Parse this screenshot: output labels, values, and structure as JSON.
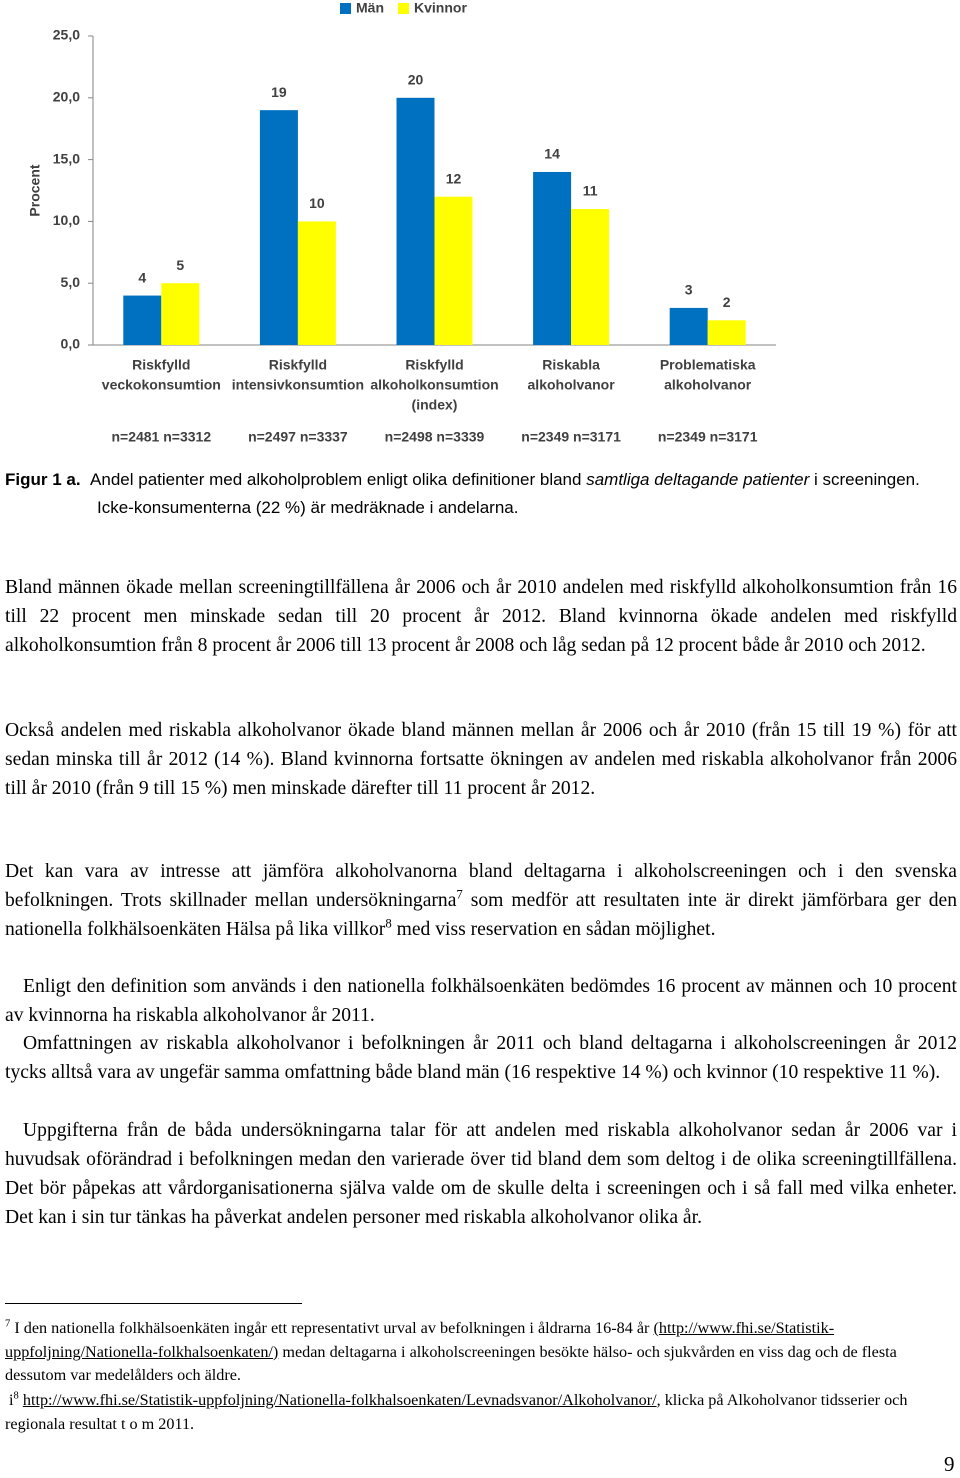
{
  "chart_data": {
    "type": "bar",
    "categories": [
      [
        "Riskfylld",
        "veckokonsumtion"
      ],
      [
        "Riskfylld",
        "intensivkonsumtion"
      ],
      [
        "Riskfylld",
        "alkoholkonsumtion",
        "(index)"
      ],
      [
        "Riskabla",
        "alkoholvanor"
      ],
      [
        "Problematiska",
        "alkoholvanor"
      ]
    ],
    "sample_sizes": [
      "n=2481 n=3312",
      "n=2497 n=3337",
      "n=2498 n=3339",
      "n=2349 n=3171",
      "n=2349 n=3171"
    ],
    "series": [
      {
        "name": "Män",
        "color": "#0070c0",
        "values": [
          4,
          19,
          20,
          14,
          3
        ]
      },
      {
        "name": "Kvinnor",
        "color": "#ffff00",
        "values": [
          5,
          10,
          12,
          11,
          2
        ]
      }
    ],
    "ylabel": "Procent",
    "ylim": [
      0,
      25
    ],
    "yticks": [
      {
        "value": 0,
        "label": "0,0"
      },
      {
        "value": 5,
        "label": "5,0"
      },
      {
        "value": 10,
        "label": "10,0"
      },
      {
        "value": 15,
        "label": "15,0"
      },
      {
        "value": 20,
        "label": "20,0"
      },
      {
        "value": 25,
        "label": "25,0"
      }
    ],
    "legend": "top",
    "grid": false
  },
  "caption": {
    "label": "Figur 1 a.",
    "text1": "Andel patienter med alkoholproblem enligt olika definitioner bland",
    "italic": "samtliga deltagande patienter",
    "text2": "i screeningen. Icke-konsumenterna (22 %) är medräknade i andelarna."
  },
  "paragraphs": [
    [
      "Bland männen ökade mellan screeningtillfällena år 2006 och år 2010 andelen med riskfylld alkoholkonsumtion från 16 till 22 procent men minskade sedan till 20 procent år 2012. Bland kvinnorna ökade andelen med riskfylld alkoholkonsumtion från 8 procent år 2006 till 13 procent år 2008 och låg sedan på 12 procent både år 2010 och 2012."
    ],
    [
      "Också andelen med riskabla alkoholvanor ökade bland männen mellan år 2006 och år 2010 (från 15 till 19 %) för att sedan minska till år 2012 (14 %). Bland kvinnorna fortsatte ökningen av andelen med riskabla alkoholvanor från 2006 till år 2010 (från 9 till 15 %) men minskade därefter till 11 procent år 2012."
    ],
    [
      "Det kan vara av intresse att jämföra alkoholvanorna bland deltagarna i alkoholscreeningen och i den svenska befolkningen. Trots skillnader mellan undersökningarna",
      "7",
      " som medför att resultaten inte är direkt jämförbara ger den nationella folkhälsoenkäten Hälsa på lika villkor",
      "8",
      " med viss reservation en sådan möjlighet."
    ],
    [
      "Enligt den definition som används i den nationella folkhälsoenkäten bedömdes 16 procent av männen och 10 procent av kvinnorna ha riskabla alkoholvanor år 2011."
    ],
    [
      "Omfattningen av riskabla alkoholvanor i befolkningen år 2011 och bland deltagarna i alkoholscreeningen år 2012 tycks alltså vara av ungefär samma omfattning både bland män (16 respektive 14 %) och kvinnor (10 respektive 11 %)."
    ],
    [
      "Uppgifterna från de båda undersökningarna talar för att andelen med riskabla alkoholvanor sedan år 2006 var i huvudsak oförändrad i befolkningen medan den varierade över tid bland dem som deltog i de olika screeningtillfällena. Det bör påpekas att vårdorganisationerna själva valde om de skulle delta i screeningen och i så fall med vilka enheter. Det kan i sin tur tänkas ha påverkat andelen personer med riskabla alkoholvanor olika år."
    ]
  ],
  "footnotes": [
    [
      "7",
      " I den nationella folkhälsoenkäten ingår ett representativt urval av befolkningen i åldrarna 16-84 år ",
      "(http://www.fhi.se/Statistik-uppfoljning/Nationella-folkhalsoenkaten/)",
      " medan deltagarna i alkoholscreeningen besökte hälso- och sjukvården en viss dag och de flesta dessutom var medelålders och äldre."
    ],
    [
      "i",
      "8",
      " ",
      "http://www.fhi.se/Statistik-uppfoljning/Nationella-folkhalsoenkaten/Levnadsvanor/Alkoholvanor/",
      ", klicka på Alkoholvanor tidsserier och regionala resultat t o m 2011."
    ]
  ],
  "page_number": "9"
}
